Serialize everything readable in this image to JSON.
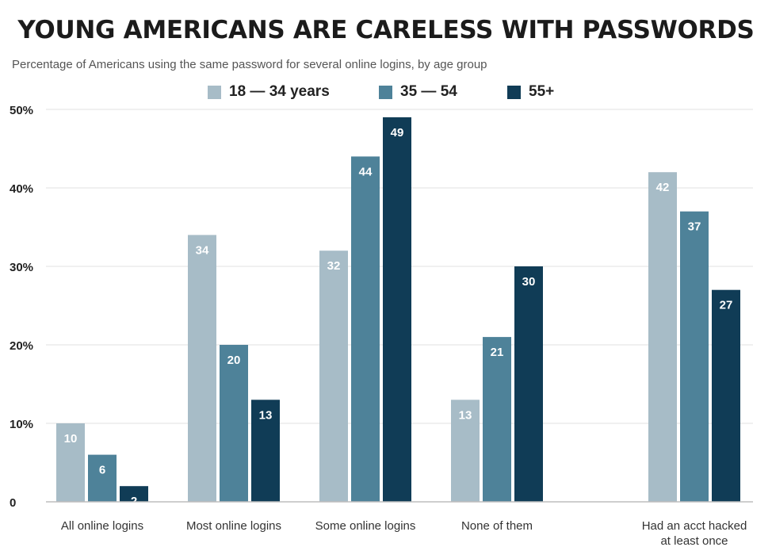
{
  "title": "YOUNG AMERICANS ARE CARELESS WITH PASSWORDS",
  "subtitle": "Percentage of Americans using the same password for several online logins, by age group",
  "colors": {
    "series1": "#a7bcc7",
    "series2": "#4e8299",
    "series3": "#103c56",
    "grid": "#e2e2e2",
    "axis": "#bdbdbd"
  },
  "chart_data": {
    "type": "bar",
    "categories": [
      "All online logins",
      "Most online logins",
      "Some online logins",
      "None of them",
      "Had an acct hacked at least once"
    ],
    "category_lines": [
      [
        "All online logins"
      ],
      [
        "Most online logins"
      ],
      [
        "Some online logins"
      ],
      [
        "None of them"
      ],
      [
        "Had an acct hacked",
        "at least once"
      ]
    ],
    "series": [
      {
        "name": "18 — 34 years",
        "values": [
          10,
          34,
          32,
          13,
          42
        ]
      },
      {
        "name": "35 — 54",
        "values": [
          6,
          20,
          44,
          21,
          37
        ]
      },
      {
        "name": "55+",
        "values": [
          2,
          13,
          49,
          30,
          27
        ]
      }
    ],
    "ylim": [
      0,
      50
    ],
    "yticks": [
      0,
      10,
      20,
      30,
      40,
      50
    ],
    "ytick_labels": [
      "0",
      "10%",
      "20%",
      "30%",
      "40%",
      "50%"
    ],
    "xlabel": "",
    "ylabel": "",
    "grid": true,
    "legend_position": "top"
  }
}
